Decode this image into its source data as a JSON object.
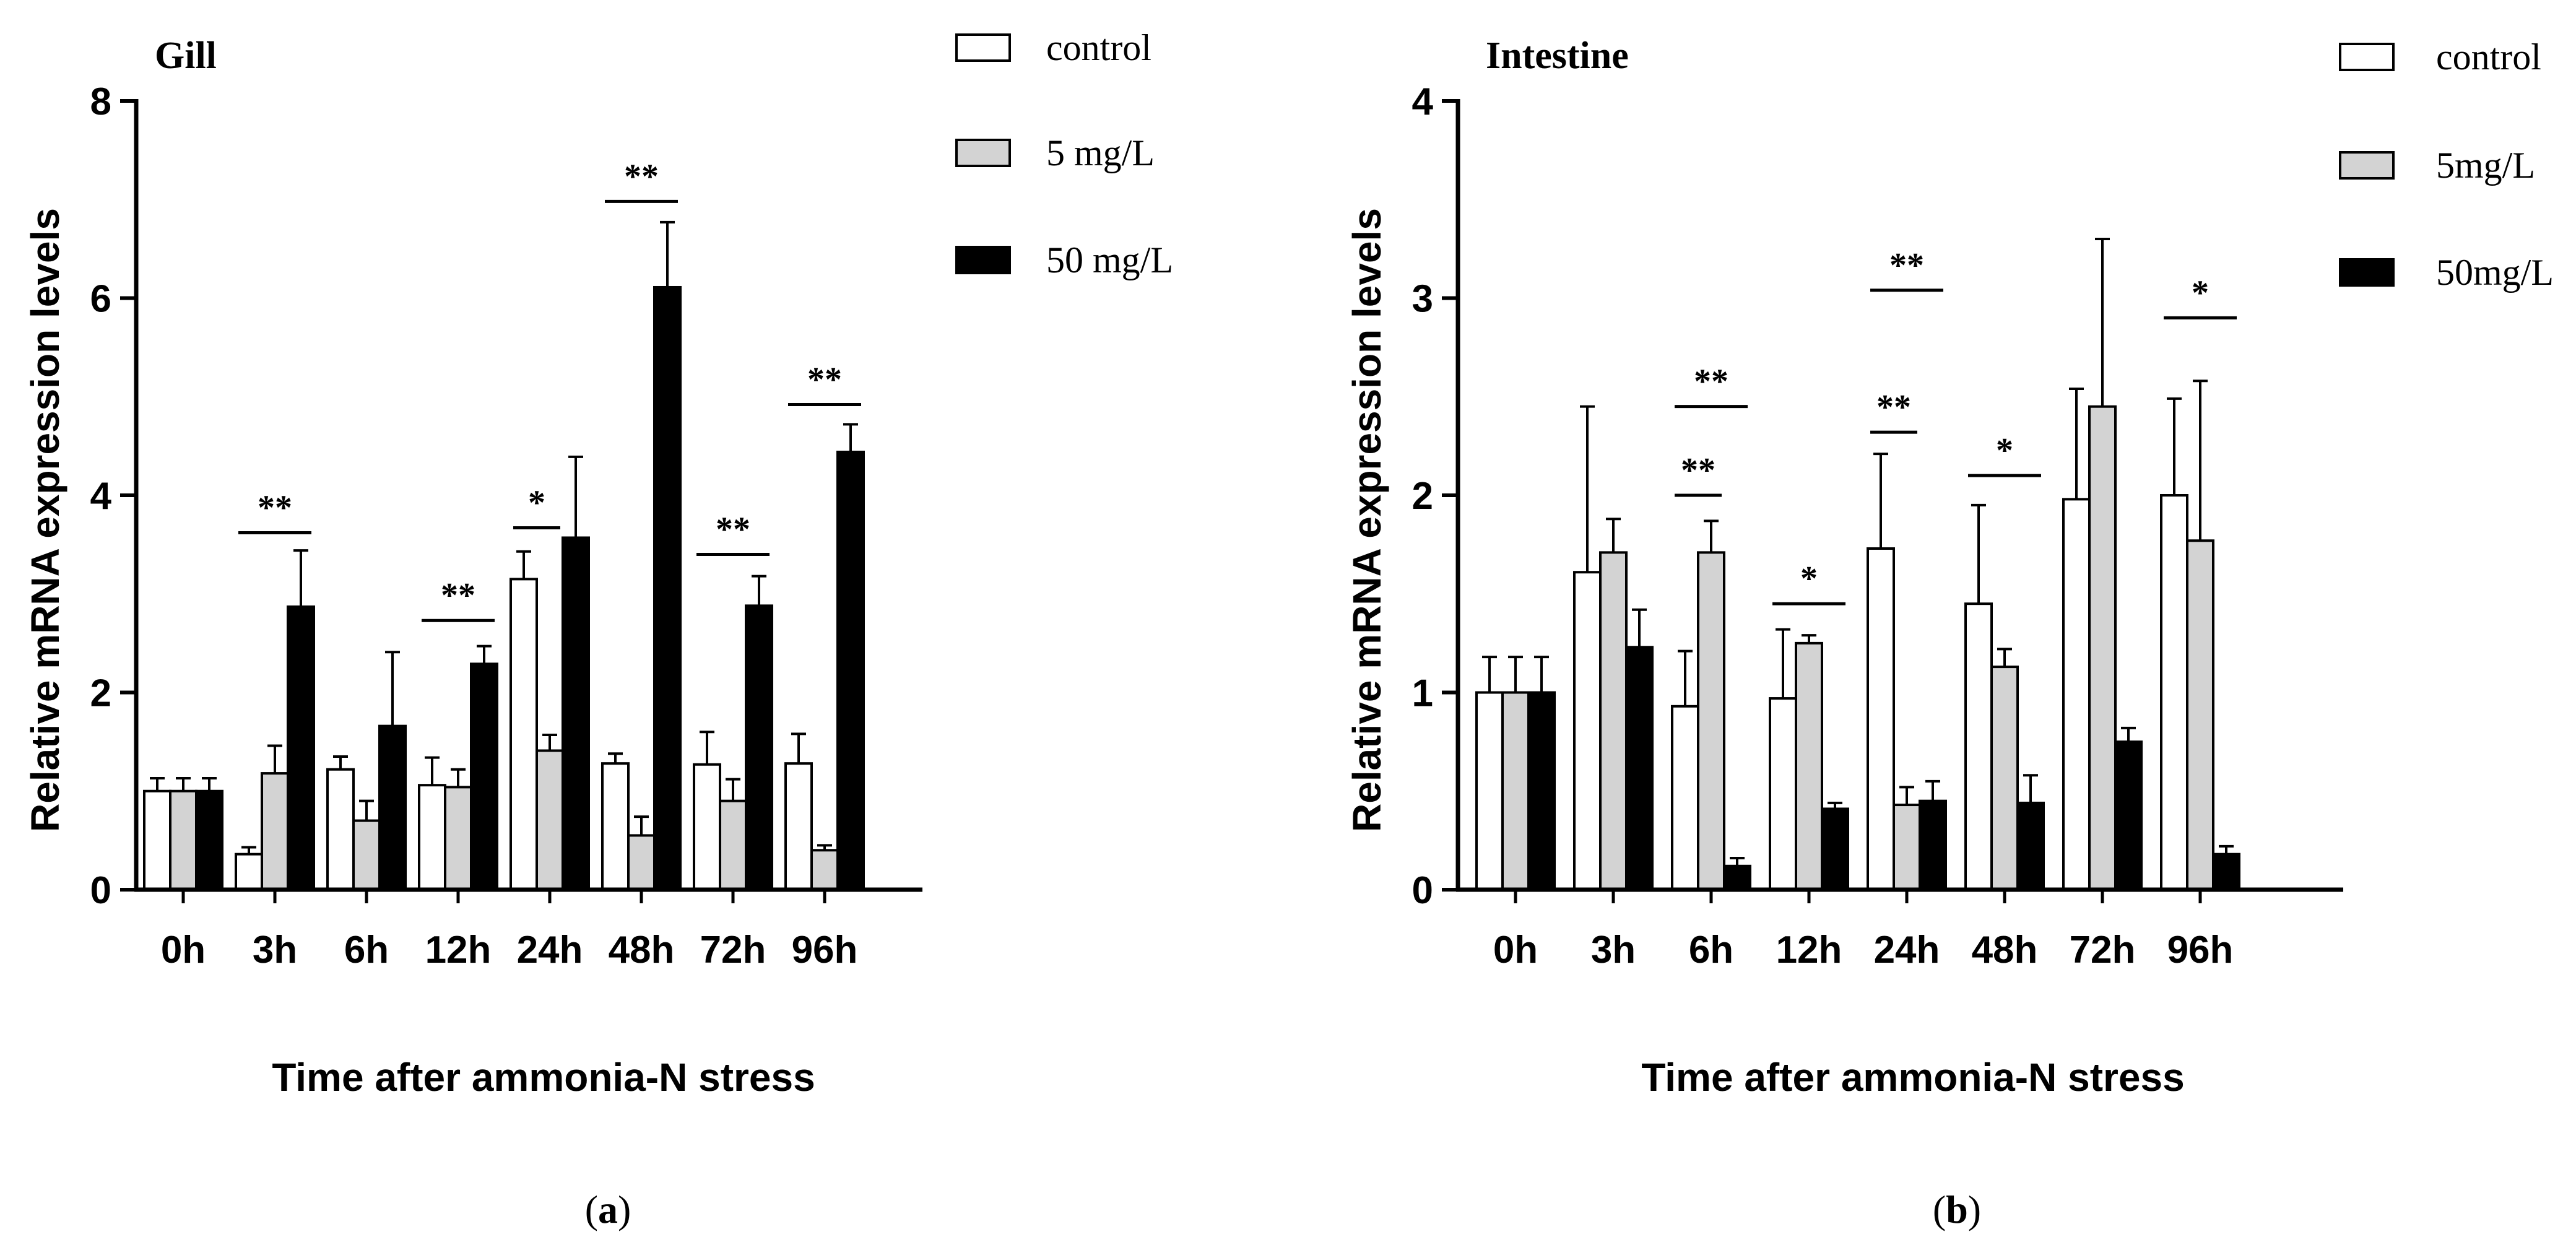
{
  "chart_data": [
    {
      "type": "bar",
      "title": "Gill",
      "panel_label": "a",
      "xlabel": "Time after ammonia-N stress",
      "ylabel": "Relative mRNA expression levels",
      "ylim": [
        0,
        8
      ],
      "yticks": [
        "0",
        "2",
        "4",
        "6",
        "8"
      ],
      "categories": [
        "0h",
        "3h",
        "6h",
        "12h",
        "24h",
        "48h",
        "72h",
        "96h"
      ],
      "series": [
        {
          "name": "control",
          "values": [
            1.0,
            0.36,
            1.22,
            1.06,
            3.15,
            1.28,
            1.27,
            1.28
          ],
          "errors": [
            0.13,
            0.07,
            0.13,
            0.28,
            0.28,
            0.1,
            0.33,
            0.3
          ],
          "color": "#ffffff"
        },
        {
          "name": "5 mg/L",
          "values": [
            1.0,
            1.18,
            0.7,
            1.04,
            1.41,
            0.55,
            0.9,
            0.4
          ],
          "errors": [
            0.13,
            0.28,
            0.2,
            0.18,
            0.16,
            0.19,
            0.22,
            0.05
          ],
          "color": "#d3d3d3"
        },
        {
          "name": "50 mg/L",
          "values": [
            1.0,
            2.87,
            1.66,
            2.29,
            3.57,
            6.11,
            2.88,
            4.44
          ],
          "errors": [
            0.13,
            0.57,
            0.75,
            0.18,
            0.82,
            0.66,
            0.3,
            0.28
          ],
          "color": "#000000"
        }
      ],
      "significance": [
        {
          "category": "3h",
          "text": "**",
          "y": 3.62,
          "span": [
            0,
            2
          ]
        },
        {
          "category": "12h",
          "text": "**",
          "y": 2.73,
          "span": [
            0,
            2
          ]
        },
        {
          "category": "24h",
          "text": "*",
          "y": 3.67,
          "span": [
            0,
            1
          ]
        },
        {
          "category": "48h",
          "text": "**",
          "y": 6.98,
          "span": [
            0,
            2
          ]
        },
        {
          "category": "72h",
          "text": "**",
          "y": 3.4,
          "span": [
            0,
            2
          ]
        },
        {
          "category": "96h",
          "text": "**",
          "y": 4.92,
          "span": [
            0,
            2
          ]
        }
      ]
    },
    {
      "type": "bar",
      "title": "Intestine",
      "panel_label": "b",
      "xlabel": "Time after ammonia-N stress",
      "ylabel": "Relative mRNA expression levels",
      "ylim": [
        0,
        4
      ],
      "yticks": [
        "0",
        "1",
        "2",
        "3",
        "4"
      ],
      "categories": [
        "0h",
        "3h",
        "6h",
        "12h",
        "24h",
        "48h",
        "72h",
        "96h"
      ],
      "series": [
        {
          "name": "control",
          "values": [
            1.0,
            1.61,
            0.93,
            0.97,
            1.73,
            1.45,
            1.98,
            2.0
          ],
          "errors": [
            0.18,
            0.84,
            0.28,
            0.35,
            0.48,
            0.5,
            0.56,
            0.49
          ],
          "color": "#ffffff"
        },
        {
          "name": "5mg/L",
          "values": [
            1.0,
            1.71,
            1.71,
            1.25,
            0.43,
            1.13,
            2.45,
            1.77
          ],
          "errors": [
            0.18,
            0.17,
            0.16,
            0.04,
            0.09,
            0.09,
            0.85,
            0.81
          ],
          "color": "#d3d3d3"
        },
        {
          "name": "50mg/L",
          "values": [
            1.0,
            1.23,
            0.12,
            0.41,
            0.45,
            0.44,
            0.75,
            0.18
          ],
          "errors": [
            0.18,
            0.19,
            0.04,
            0.03,
            0.1,
            0.14,
            0.07,
            0.04
          ],
          "color": "#000000"
        }
      ],
      "significance": [
        {
          "category": "6h",
          "text": "**",
          "y": 2.0,
          "span": [
            0,
            1
          ]
        },
        {
          "category": "6h",
          "text": "**",
          "y": 2.45,
          "span": [
            0,
            2
          ]
        },
        {
          "category": "12h",
          "text": "*",
          "y": 1.45,
          "span": [
            0,
            2
          ]
        },
        {
          "category": "24h",
          "text": "**",
          "y": 2.32,
          "span": [
            0,
            1
          ]
        },
        {
          "category": "24h",
          "text": "**",
          "y": 3.04,
          "span": [
            0,
            2
          ]
        },
        {
          "category": "48h",
          "text": "*",
          "y": 2.1,
          "span": [
            0,
            2
          ]
        },
        {
          "category": "96h",
          "text": "*",
          "y": 2.9,
          "span": [
            0,
            2
          ]
        }
      ]
    }
  ]
}
